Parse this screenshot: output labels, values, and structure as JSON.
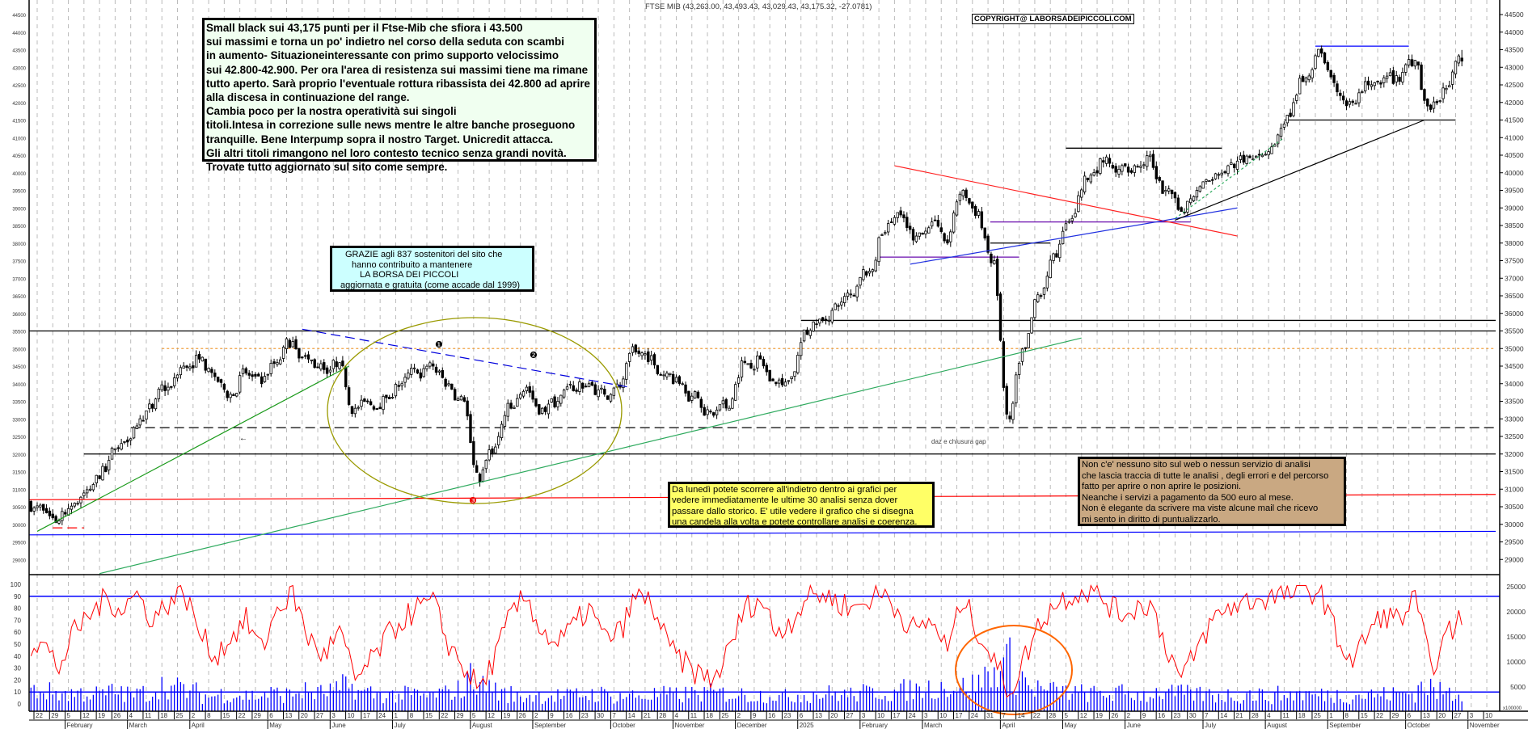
{
  "header": {
    "title": "FTSE MIB (43,263.00, 43,493.43, 43,029.43, 43,175.32, -27.0781)",
    "copyright": "COPYRIGHT@ LABORSADEIPICCOLI.COM"
  },
  "boxes": {
    "comment": [
      "Small black sui 43,175  punti per il Ftse-Mib che  sfiora i 43.500",
      "sui massimi e torna un po' indietro nel corso della seduta con scambi",
      "in aumento- Situazioneinteressante con primo supporto velocissimo",
      "sui 42.800-42.900. Per ora l'area di resistenza sui massimi tiene ma rimane",
      "tutto aperto. Sarà proprio l'eventuale rottura ribassista dei 42.800 ad aprire",
      "alla discesa in continuazione del range.",
      "Cambia poco per la nostra operatività sui singoli",
      "titoli.Intesa in correzione sulle news mentre le altre banche proseguono",
      "tranquille. Bene Interpump sopra il nostro Target. Unicredit attacca.",
      "Gli altri titoli rimangono nel loro contesto tecnico senza grandi novità.",
      "Trovate tutto aggiornato sul sito come sempre."
    ],
    "thanks": [
      "GRAZIE  agli 837  sostenitori del sito che",
      "hanno contribuito a mantenere",
      "LA BORSA DEI PICCOLI",
      "aggiornata e gratuita (come accade dal 1999)"
    ],
    "yellow": [
      "Da lunedì potete scorrere all'indietro dentro ai grafici per",
      "vedere immediatamente le ultime 30 analisi senza dover",
      "passare dallo storico.  E' utile vedere il grafico che si disegna",
      "una candela alla volta e potete controllare analisi e coerenza."
    ],
    "tan": [
      "Non c'e' nessuno sito sul web o nessun servizio di analisi",
      "che lascia traccia di tutte le analisi , degli errori e del percorso",
      "fatto per aprire o non aprire le posizioni.",
      "Neanche i servizi a pagamento da 500 euro al mese.",
      "Non è elegante da scrivere ma viste alcune mail che ricevo",
      "mi sento in diritto di puntualizzarlo."
    ]
  },
  "chart_data": {
    "type": "candlestick",
    "symbol": "FTSE MIB",
    "last_bar": {
      "open": 43263.0,
      "high": 43493.43,
      "low": 43029.43,
      "close": 43175.32,
      "change": -27.0781
    },
    "weekly_start": "2024-01-22",
    "weekly_closes": [
      30400,
      30100,
      30600,
      31000,
      31500,
      32300,
      32800,
      33300,
      33900,
      34500,
      34700,
      34200,
      33700,
      34300,
      34000,
      34600,
      35200,
      34700,
      34400,
      34600,
      33300,
      33400,
      33600,
      34000,
      34300,
      34500,
      34000,
      33500,
      31200,
      32200,
      33300,
      33900,
      33300,
      33500,
      33800,
      34000,
      33700,
      33900,
      34900,
      34800,
      34300,
      34000,
      33600,
      33100,
      33300,
      34600,
      34700,
      34000,
      34200,
      35400,
      35800,
      36200,
      36500,
      37200,
      38300,
      38800,
      38200,
      38600,
      38000,
      39500,
      38900,
      37500,
      33000,
      35000,
      36500,
      37600,
      38700,
      39800,
      40300,
      40100,
      40200,
      40500,
      39500,
      38900,
      39500,
      39800,
      40200,
      40300,
      40500,
      40800,
      41600,
      42700,
      43400,
      42300,
      42000,
      42500,
      42700,
      42600,
      43200,
      41800,
      42400,
      43175.32
    ],
    "oscillator_weekly": [
      50,
      30,
      60,
      75,
      88,
      80,
      92,
      70,
      85,
      95,
      60,
      40,
      55,
      70,
      45,
      80,
      92,
      55,
      40,
      60,
      20,
      35,
      55,
      70,
      80,
      85,
      50,
      30,
      12,
      40,
      75,
      90,
      60,
      50,
      65,
      80,
      55,
      60,
      90,
      85,
      50,
      35,
      25,
      20,
      45,
      80,
      88,
      60,
      70,
      90,
      92,
      85,
      80,
      88,
      92,
      75,
      60,
      70,
      45,
      88,
      60,
      35,
      10,
      40,
      70,
      85,
      92,
      95,
      88,
      75,
      80,
      85,
      50,
      20,
      45,
      70,
      80,
      85,
      88,
      90,
      92,
      95,
      93,
      55,
      35,
      60,
      75,
      70,
      88,
      30,
      55,
      75
    ],
    "volume_weekly": [
      4000,
      3800,
      3500,
      3600,
      3400,
      3800,
      3300,
      3600,
      5000,
      4500,
      3800,
      3000,
      3400,
      3200,
      3100,
      3500,
      3300,
      3900,
      3600,
      4000,
      4800,
      3700,
      3300,
      3200,
      3300,
      3000,
      3500,
      4200,
      6500,
      4800,
      3400,
      2900,
      3200,
      3100,
      3000,
      3300,
      3400,
      3000,
      3100,
      3000,
      3300,
      3200,
      3400,
      3600,
      3500,
      3300,
      3200,
      3400,
      2900,
      3300,
      3400,
      3500,
      3300,
      3600,
      3900,
      3700,
      4200,
      4500,
      4800,
      4700,
      5200,
      6800,
      9500,
      6500,
      4500,
      4000,
      3800,
      3600,
      3400,
      3500,
      3600,
      3300,
      3700,
      3500,
      3400,
      3300,
      3200,
      3100,
      3400,
      3000,
      3300,
      3500,
      3200,
      3300,
      3100,
      3200,
      3300,
      3400,
      3600,
      4800,
      3800,
      3600
    ],
    "price_axis": {
      "min": 29000,
      "max": 44500,
      "step": 500
    },
    "oscillator_axis": {
      "min": 0,
      "max": 100,
      "step": 10,
      "levels": [
        90,
        10
      ]
    },
    "volume_axis": {
      "min": 0,
      "max": 25000,
      "step": 5000,
      "unit_label": "x100000"
    },
    "x_ticks": [
      "22",
      "29",
      "5",
      "12",
      "19",
      "26",
      "4",
      "11",
      "18",
      "25",
      "2",
      "8",
      "15",
      "22",
      "29",
      "6",
      "13",
      "20",
      "27",
      "3",
      "10",
      "17",
      "24",
      "1",
      "8",
      "15",
      "22",
      "29",
      "5",
      "12",
      "19",
      "26",
      "2",
      "9",
      "16",
      "23",
      "30",
      "7",
      "14",
      "21",
      "28",
      "4",
      "11",
      "18",
      "25",
      "2",
      "9",
      "16",
      "23",
      "6",
      "13",
      "20",
      "27",
      "3",
      "10",
      "17",
      "24",
      "3",
      "10",
      "17",
      "24",
      "31",
      "7",
      "14",
      "22",
      "28",
      "5",
      "12",
      "19",
      "26",
      "2",
      "9",
      "16",
      "23",
      "30",
      "7",
      "14",
      "21",
      "28",
      "4",
      "11",
      "18",
      "25",
      "1",
      "8",
      "15",
      "22",
      "29",
      "6",
      "13",
      "20",
      "27",
      "3",
      "10"
    ],
    "months": [
      {
        "label": "February",
        "tick": 2
      },
      {
        "label": "March",
        "tick": 6
      },
      {
        "label": "April",
        "tick": 10
      },
      {
        "label": "May",
        "tick": 15
      },
      {
        "label": "June",
        "tick": 19
      },
      {
        "label": "July",
        "tick": 23
      },
      {
        "label": "August",
        "tick": 28
      },
      {
        "label": "September",
        "tick": 32
      },
      {
        "label": "October",
        "tick": 37
      },
      {
        "label": "November",
        "tick": 41
      },
      {
        "label": "December",
        "tick": 45
      },
      {
        "label": "2025",
        "tick": 49
      },
      {
        "label": "February",
        "tick": 53
      },
      {
        "label": "March",
        "tick": 57
      },
      {
        "label": "April",
        "tick": 62
      },
      {
        "label": "May",
        "tick": 66
      },
      {
        "label": "June",
        "tick": 70
      },
      {
        "label": "July",
        "tick": 75
      },
      {
        "label": "August",
        "tick": 79
      },
      {
        "label": "September",
        "tick": 83
      },
      {
        "label": "October",
        "tick": 88
      },
      {
        "label": "November",
        "tick": 92
      }
    ],
    "horizontal_lines": [
      {
        "price": 35500,
        "from": "2024-01-15",
        "to": "2025-11-14",
        "color": "#000000",
        "style": "solid"
      },
      {
        "price": 35000,
        "from": "2024-03-18",
        "to": "2025-11-14",
        "color": "#f0a040",
        "style": "dotted"
      },
      {
        "price": 32750,
        "from": "2024-03-04",
        "to": "2025-11-14",
        "color": "#000000",
        "style": "dashed"
      },
      {
        "price": 32000,
        "from": "2024-02-12",
        "to": "2025-11-14",
        "color": "#000000",
        "style": "solid"
      },
      {
        "price": 35800,
        "from": "2025-01-06",
        "to": "2025-11-14",
        "color": "#000000",
        "style": "solid"
      },
      {
        "price": 43600,
        "from": "2025-08-25",
        "to": "2025-10-06",
        "color": "#0000ff",
        "style": "solid"
      },
      {
        "price": 41500,
        "from": "2025-08-11",
        "to": "2025-10-27",
        "color": "#000000",
        "style": "solid"
      },
      {
        "price": 40700,
        "from": "2025-05-05",
        "to": "2025-07-14",
        "color": "#000000",
        "style": "solid"
      },
      {
        "price": 38600,
        "from": "2025-04-01",
        "to": "2025-06-30",
        "color": "#6a0dad",
        "style": "solid"
      },
      {
        "price": 37600,
        "from": "2025-02-10",
        "to": "2025-04-14",
        "color": "#6a0dad",
        "style": "solid"
      },
      {
        "price": 38000,
        "from": "2025-04-01",
        "to": "2025-04-28",
        "color": "#000000",
        "style": "solid"
      },
      {
        "price": 29900,
        "from": "2024-01-29",
        "to": "2024-02-12",
        "color": "#ff0000",
        "style": "dashed"
      }
    ],
    "trend_lines": [
      {
        "from": [
          "2024-01-15",
          30700
        ],
        "to": [
          "2025-11-14",
          30850
        ],
        "color": "#ff0000",
        "style": "solid"
      },
      {
        "from": [
          "2024-01-15",
          29700
        ],
        "to": [
          "2025-11-14",
          29800
        ],
        "color": "#0000ff",
        "style": "solid"
      },
      {
        "from": [
          "2024-01-22",
          29800
        ],
        "to": [
          "2024-06-10",
          34500
        ],
        "color": "#1a9a1a",
        "style": "solid"
      },
      {
        "from": [
          "2024-02-19",
          28600
        ],
        "to": [
          "2025-05-12",
          35300
        ],
        "color": "#2eaa5e",
        "style": "solid"
      },
      {
        "from": [
          "2024-05-20",
          35550
        ],
        "to": [
          "2024-10-14",
          33900
        ],
        "color": "#0000dd",
        "style": "dashed"
      },
      {
        "from": [
          "2025-02-17",
          40200
        ],
        "to": [
          "2025-07-21",
          38200
        ],
        "color": "#ff2020",
        "style": "solid"
      },
      {
        "from": [
          "2025-02-24",
          37400
        ],
        "to": [
          "2025-07-21",
          39000
        ],
        "color": "#2030e0",
        "style": "solid"
      },
      {
        "from": [
          "2025-06-23",
          38650
        ],
        "to": [
          "2025-10-13",
          41500
        ],
        "color": "#000000",
        "style": "solid"
      },
      {
        "from": [
          "2025-06-23",
          38700
        ],
        "to": [
          "2025-08-11",
          41000
        ],
        "color": "#2eaa5e",
        "style": "dotted"
      }
    ],
    "annotations": {
      "gap_note": "daz e chiusura gap",
      "marker_1": "❶",
      "marker_2": "❷",
      "marker_3": "❸",
      "arrow": "←"
    },
    "colors": {
      "oscillator": "#ff0000",
      "volume": "#0000ff",
      "ellipse": "#9a9a00",
      "circle": "#ff6600"
    }
  }
}
